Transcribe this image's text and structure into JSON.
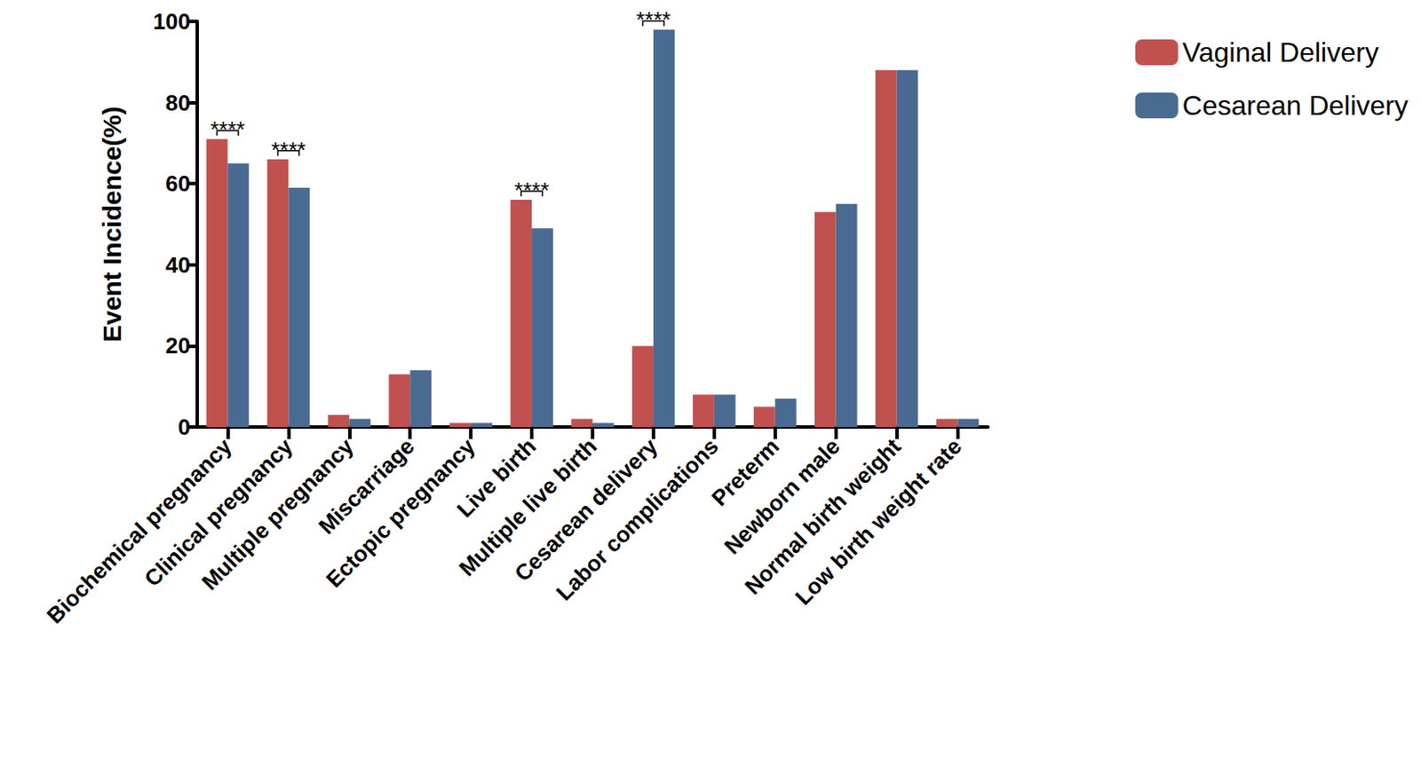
{
  "chart_data": {
    "type": "bar",
    "y_label": "Event Incidence(%)",
    "categories": [
      "Biochemical pregnancy",
      "Clinical pregnancy",
      "Multiple pregnancy",
      "Miscarriage",
      "Ectopic pregnancy",
      "Live birth",
      "Multiple live birth",
      "Cesarean delivery",
      "Labor complications",
      "Preterm",
      "Newborn male",
      "Normal birth weight",
      "Low birth weight rate"
    ],
    "series": [
      {
        "name": "Vaginal Delivery",
        "color": "#c1514f",
        "values": [
          71,
          66,
          3,
          13,
          1,
          56,
          2,
          20,
          8,
          5,
          53,
          88,
          2
        ]
      },
      {
        "name": "Cesarean Delivery",
        "color": "#4a6b91",
        "values": [
          65,
          59,
          2,
          14,
          1,
          49,
          1,
          98,
          8,
          7,
          55,
          88,
          2
        ]
      }
    ],
    "annotations": [
      {
        "category": "Biochemical pregnancy",
        "text": "****"
      },
      {
        "category": "Clinical pregnancy",
        "text": "****"
      },
      {
        "category": "Live birth",
        "text": "****"
      },
      {
        "category": "Cesarean delivery",
        "text": "****"
      }
    ],
    "ylim": [
      0,
      100
    ],
    "yticks": [
      0,
      20,
      40,
      60,
      80,
      100
    ],
    "grid": false,
    "legend": "right"
  }
}
